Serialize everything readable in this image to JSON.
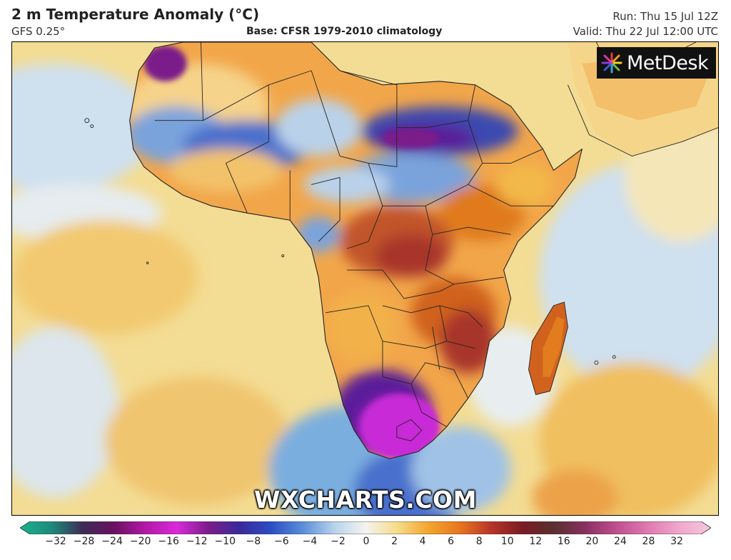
{
  "header": {
    "title": "2 m Temperature Anomaly (°C)",
    "model": "GFS 0.25°",
    "base": "Base: CFSR 1979-2010 climatology",
    "run": "Run: Thu 15 Jul 12Z",
    "valid": "Valid: Thu 22 Jul 12:00 UTC"
  },
  "branding": {
    "logo_text": "MetDesk",
    "watermark": "WXCHARTS.COM"
  },
  "colorbar": {
    "ticks": [
      "−32",
      "−28",
      "−24",
      "−20",
      "−16",
      "−12",
      "−10",
      "−8",
      "−6",
      "−4",
      "−2",
      "0",
      "2",
      "4",
      "6",
      "8",
      "10",
      "12",
      "16",
      "20",
      "24",
      "28",
      "32"
    ],
    "colors": [
      "#19b38f",
      "#1e8a7a",
      "#3d2b55",
      "#6a1060",
      "#b318a8",
      "#d92ad9",
      "#7a1d8a",
      "#3a2a9a",
      "#2c4ec4",
      "#5a8ed8",
      "#b7d2ec",
      "#f4f4f0",
      "#f6dc8a",
      "#f2a62e",
      "#e8761e",
      "#b8342a",
      "#7a1c24",
      "#5a3030",
      "#8a3060",
      "#c05090",
      "#e07ab0",
      "#f0a8cc",
      "#f5c7dd"
    ]
  },
  "map": {
    "ocean_color": "#f3dc93",
    "anomaly_colors": {
      "warm": "#f2a64a",
      "hot": "#e07a1e",
      "very_hot": "#b8452a",
      "cool": "#b9d2ea",
      "cold": "#3f62c2",
      "very_cold": "#5a1f9a",
      "extreme_cold": "#c72bd6"
    }
  }
}
